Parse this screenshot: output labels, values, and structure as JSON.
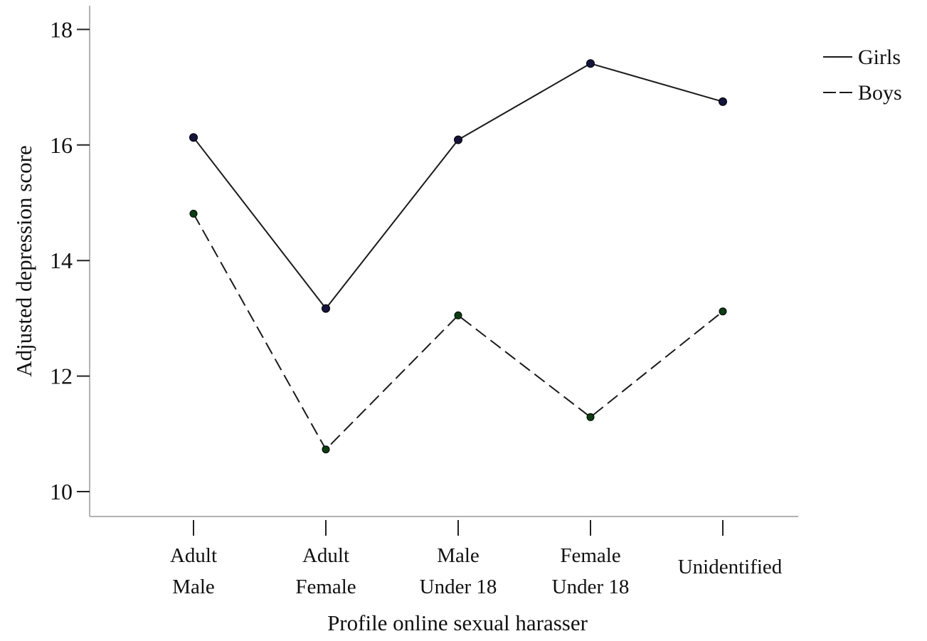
{
  "chart_data": {
    "type": "line",
    "xlabel": "Profile online sexual harasser",
    "ylabel": "Adjusted depression score",
    "categories": [
      [
        "Adult",
        "Male"
      ],
      [
        "Adult",
        "Female"
      ],
      [
        "Male",
        "Under 18"
      ],
      [
        "Female",
        "Under 18"
      ],
      [
        "Unidentified"
      ]
    ],
    "ylim": [
      9.6,
      18.4
    ],
    "yticks": [
      10,
      12,
      14,
      16,
      18
    ],
    "grid": false,
    "legend_position": "top-right",
    "series": [
      {
        "name": "Girls",
        "values": [
          16.13,
          13.17,
          16.09,
          17.41,
          16.75
        ],
        "line_style": "solid",
        "line_color": "#1a1a1a",
        "marker_color": "#14143c"
      },
      {
        "name": "Boys",
        "values": [
          14.81,
          10.73,
          13.05,
          11.29,
          13.12
        ],
        "line_style": "dashed",
        "line_color": "#1a1a1a",
        "marker_color": "#0d3d12"
      }
    ]
  }
}
